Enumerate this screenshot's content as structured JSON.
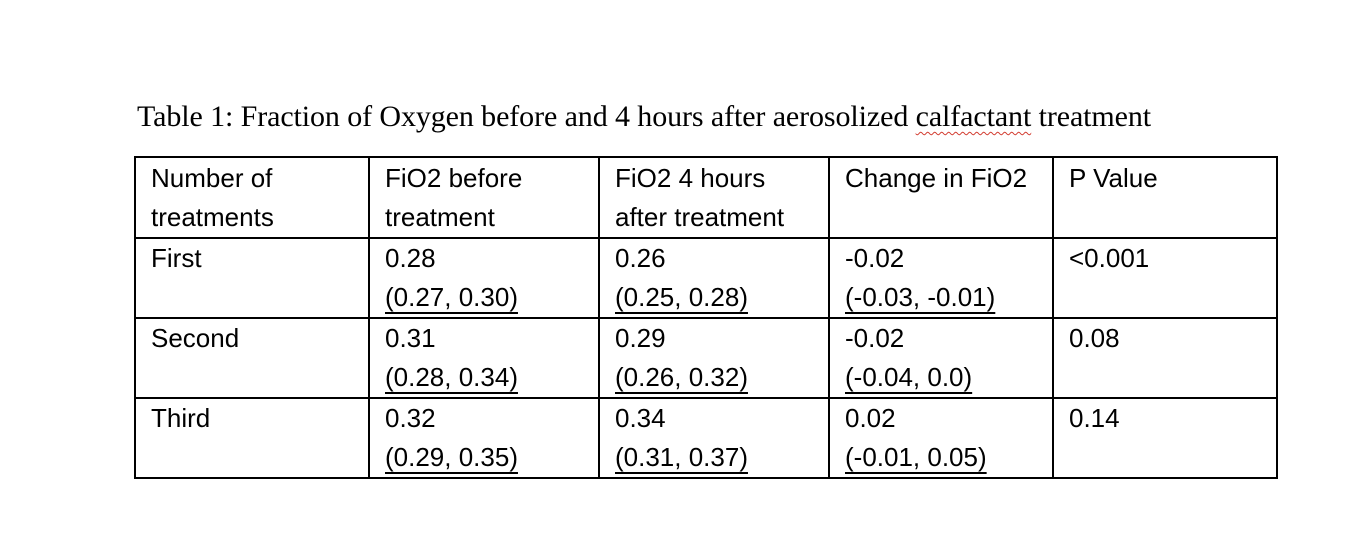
{
  "caption": {
    "before": "Table 1: Fraction of Oxygen before and 4 hours after aerosolized ",
    "flagged_word": "calfactant",
    "after": " treatment"
  },
  "table": {
    "headers": [
      [
        "Number of",
        "treatments"
      ],
      [
        "FiO2 before",
        "treatment"
      ],
      [
        "FiO2 4 hours",
        "after treatment"
      ],
      [
        "Change in FiO2"
      ],
      [
        "P Value"
      ]
    ],
    "rows": [
      {
        "label": "First",
        "fio2_before": {
          "value": "0.28",
          "ci": "(0.27, 0.30)"
        },
        "fio2_after": {
          "value": "0.26",
          "ci": "(0.25, 0.28)"
        },
        "change": {
          "value": "-0.02",
          "ci": "(-0.03, -0.01)"
        },
        "p_value": "<0.001"
      },
      {
        "label": "Second",
        "fio2_before": {
          "value": "0.31",
          "ci": "(0.28, 0.34)"
        },
        "fio2_after": {
          "value": "0.29",
          "ci": "(0.26, 0.32)"
        },
        "change": {
          "value": "-0.02",
          "ci": "(-0.04, 0.0)"
        },
        "p_value": "0.08"
      },
      {
        "label": "Third",
        "fio2_before": {
          "value": "0.32",
          "ci": "(0.29, 0.35)"
        },
        "fio2_after": {
          "value": "0.34",
          "ci": "(0.31, 0.37)"
        },
        "change": {
          "value": "0.02",
          "ci": "(-0.01, 0.05)"
        },
        "p_value": "0.14"
      }
    ]
  },
  "colors": {
    "text": "#000000",
    "border": "#000000",
    "spellcheck_underline": "#d23b2f",
    "background": "#ffffff"
  }
}
